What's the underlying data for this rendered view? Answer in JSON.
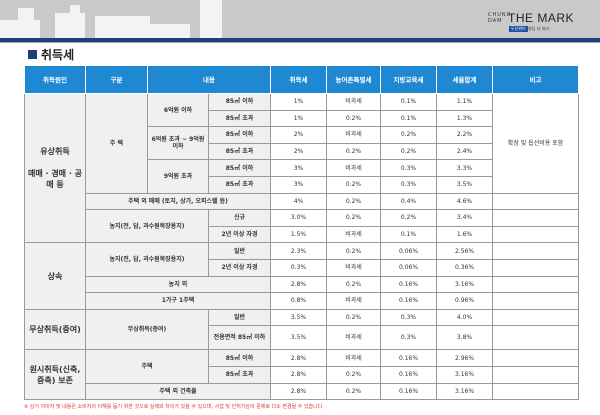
{
  "header": {
    "logo": {
      "small": "CHUNG DAM",
      "main": "THE MARK",
      "badge": "두산위브",
      "sub": "청담 더 마크"
    }
  },
  "title": "취득세",
  "table": {
    "columns": [
      "취득원인",
      "구분",
      "내용",
      "취득세",
      "농어촌특별세",
      "지방교육세",
      "세율합계",
      "비고"
    ],
    "cells": {
      "c_paid": "유상취득",
      "c_paid_sub": "매매 · 경매 · 공매 등",
      "c_house": "주 택",
      "p6": "6억원 이하",
      "p6_9": "6억원 초과 ~ 9억원 이하",
      "p9": "9억원 초과",
      "le85": "85㎡ 이하",
      "gt85": "85㎡ 초과",
      "nonhouse": "주택 외 매매 (토지, 상가, 오피스텔 등)",
      "farm": "농지(전, 답, 과수원목장용지)",
      "new": "신규",
      "self2": "2년 이상 자경",
      "inherit": "상속",
      "general": "일반",
      "nonfarm": "농지 외",
      "onehouse": "1가구 1주택",
      "gift": "무상취득(증여)",
      "area85": "전용면적 85㎡ 이하",
      "orig": "원시취득(신축, 증축) 보존",
      "house2": "주택",
      "nonhouse2": "주택 외 건축물",
      "note": "확장 및 옵션비용 포함"
    },
    "rows": [
      [
        "1%",
        "비과세",
        "0.1%",
        "1.1%"
      ],
      [
        "1%",
        "0.2%",
        "0.1%",
        "1.3%"
      ],
      [
        "2%",
        "비과세",
        "0.2%",
        "2.2%"
      ],
      [
        "2%",
        "0.2%",
        "0.2%",
        "2.4%"
      ],
      [
        "3%",
        "비과세",
        "0.3%",
        "3.3%"
      ],
      [
        "3%",
        "0.2%",
        "0.3%",
        "3.5%"
      ],
      [
        "4%",
        "0.2%",
        "0.4%",
        "4.6%"
      ],
      [
        "3.0%",
        "0.2%",
        "0.2%",
        "3.4%"
      ],
      [
        "1.5%",
        "비과세",
        "0.1%",
        "1.6%"
      ],
      [
        "2.3%",
        "0.2%",
        "0.06%",
        "2.56%"
      ],
      [
        "0.3%",
        "비과세",
        "0.06%",
        "0.36%"
      ],
      [
        "2.8%",
        "0.2%",
        "0.16%",
        "3.16%"
      ],
      [
        "0.8%",
        "비과세",
        "0.16%",
        "0.96%"
      ],
      [
        "3.5%",
        "0.2%",
        "0.3%",
        "4.0%"
      ],
      [
        "3.5%",
        "비과세",
        "0.3%",
        "3.8%"
      ],
      [
        "2.8%",
        "비과세",
        "0.16%",
        "2.96%"
      ],
      [
        "2.8%",
        "0.2%",
        "0.16%",
        "3.16%"
      ],
      [
        "2.8%",
        "0.2%",
        "0.16%",
        "3.16%"
      ]
    ]
  },
  "footnote": "※ 상기 이미지 및 내용은 소비자의 이해를 돕기 위한 것으로 실제와 차이가 있을 수 있으며, 사업 및 인허가상의 문제로 다소 변경될 수 있습니다."
}
